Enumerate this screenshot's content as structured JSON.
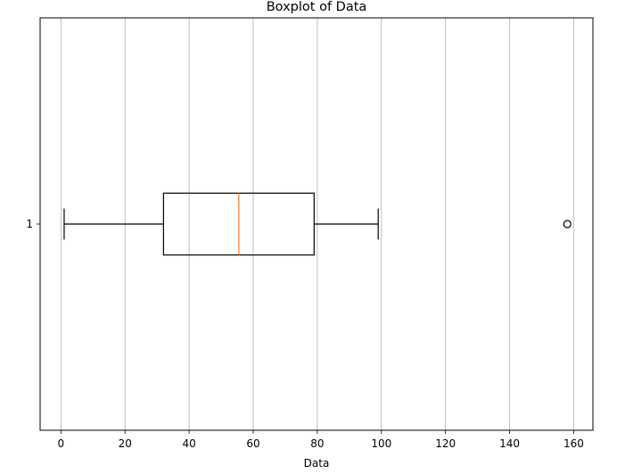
{
  "chart_data": {
    "type": "boxplot",
    "orientation": "horizontal",
    "title": "Boxplot of Data",
    "xlabel": "Data",
    "ylabel": "",
    "xlim": [
      -6.5,
      166
    ],
    "xticks": [
      0,
      20,
      40,
      60,
      80,
      100,
      120,
      140,
      160
    ],
    "yticks": [
      "1"
    ],
    "grid": {
      "x": true,
      "y": false
    },
    "boxes": [
      {
        "label": "1",
        "whisker_low": 1,
        "q1": 32,
        "median": 55.5,
        "q3": 79,
        "whisker_high": 99,
        "outliers": [
          158
        ]
      }
    ],
    "colors": {
      "box": "#000000",
      "median": "#ff7f0e",
      "grid": "#b0b0b0",
      "outlier": "#000000"
    }
  }
}
